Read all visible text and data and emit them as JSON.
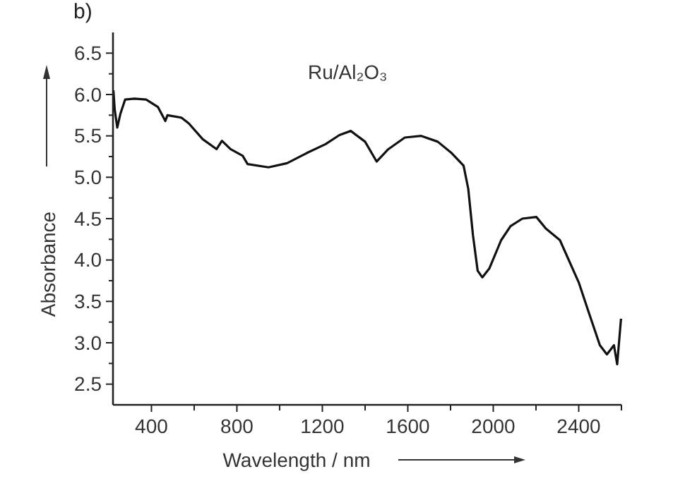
{
  "chart_data": {
    "type": "line",
    "xlabel": "Wavelength / nm",
    "ylabel": "Absorbance",
    "annotations": [
      "b)",
      "Ru/Al₂O₃"
    ],
    "xlim": [
      220,
      2600
    ],
    "ylim": [
      2.25,
      6.75
    ],
    "xticks": [
      400,
      {
        "value": 600,
        "label": null
      },
      800,
      {
        "value": 1000,
        "label": null
      },
      1200,
      {
        "value": 1400,
        "label": null
      },
      1600,
      {
        "value": 1800,
        "label": null
      },
      2000,
      {
        "value": 2200,
        "label": null
      },
      2400,
      {
        "value": 2600,
        "label": null
      }
    ],
    "yticks": [
      2.5,
      {
        "value": 2.75,
        "label": null
      },
      {
        "value": 3,
        "label": "3.0"
      },
      {
        "value": 3.25,
        "label": null
      },
      3.5,
      {
        "value": 3.75,
        "label": null
      },
      {
        "value": 4,
        "label": "4.0"
      },
      {
        "value": 4.25,
        "label": null
      },
      4.5,
      {
        "value": 4.75,
        "label": null
      },
      {
        "value": 5,
        "label": "5.0"
      },
      {
        "value": 5.25,
        "label": null
      },
      5.5,
      {
        "value": 5.75,
        "label": null
      },
      {
        "value": 6,
        "label": "6.0"
      },
      {
        "value": 6.25,
        "label": null
      },
      6.5
    ],
    "marker": "none",
    "line_style": "solid",
    "series": [
      {
        "color": "#111111",
        "x": [
          222,
          228,
          240,
          255,
          277,
          320,
          375,
          430,
          465,
          475,
          540,
          575,
          640,
          705,
          730,
          770,
          827,
          850,
          948,
          1035,
          1125,
          1215,
          1280,
          1333,
          1400,
          1454,
          1509,
          1586,
          1663,
          1740,
          1806,
          1861,
          1883,
          1905,
          1927,
          1949,
          1982,
          2037,
          2081,
          2136,
          2202,
          2246,
          2312,
          2400,
          2444,
          2499,
          2532,
          2565,
          2580,
          2598
        ],
        "values": [
          6.05,
          5.82,
          5.6,
          5.77,
          5.94,
          5.95,
          5.94,
          5.85,
          5.68,
          5.75,
          5.72,
          5.65,
          5.46,
          5.34,
          5.44,
          5.34,
          5.26,
          5.16,
          5.12,
          5.17,
          5.29,
          5.4,
          5.51,
          5.56,
          5.43,
          5.19,
          5.34,
          5.48,
          5.5,
          5.43,
          5.29,
          5.14,
          4.86,
          4.3,
          3.87,
          3.79,
          3.9,
          4.24,
          4.41,
          4.5,
          4.52,
          4.38,
          4.24,
          3.73,
          3.39,
          2.97,
          2.86,
          2.97,
          2.74,
          3.29
        ]
      }
    ]
  }
}
